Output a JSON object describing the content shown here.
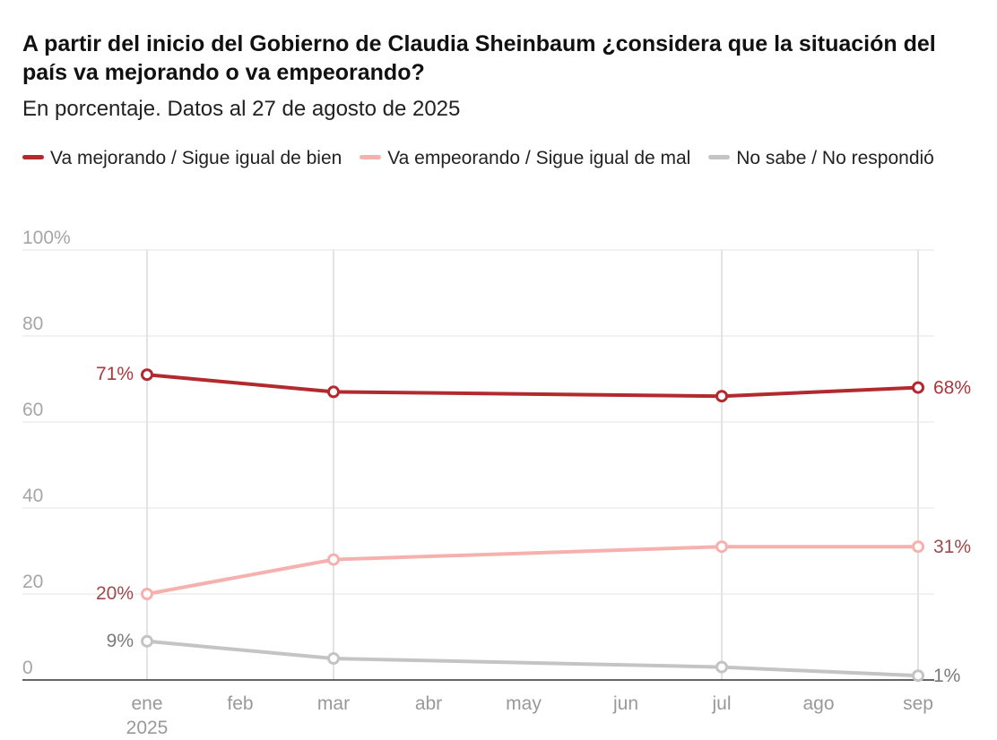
{
  "title": "A partir del inicio del Gobierno de Claudia Sheinbaum ¿considera que la situación del país va mejorando o va empeorando?",
  "subtitle": "En porcentaje. Datos al 27 de agosto de 2025",
  "chart_data": {
    "type": "line",
    "x_ticks": [
      "ene",
      "feb",
      "mar",
      "abr",
      "may",
      "jun",
      "jul",
      "ago",
      "sep"
    ],
    "x_tick_sub": "2025",
    "y_ticks": [
      "100%",
      "80",
      "60",
      "40",
      "20",
      "0"
    ],
    "ylim": [
      0,
      100
    ],
    "series": [
      {
        "name": "Va mejorando / Sigue igual de bien",
        "color": "#b2292e",
        "label_color": "#a8393c",
        "points": [
          {
            "x": "2025-01",
            "y": 71
          },
          {
            "x": "2025-03",
            "y": 67
          },
          {
            "x": "2025-07",
            "y": 66
          },
          {
            "x": "2025-09",
            "y": 68
          }
        ],
        "first_label": "71%",
        "last_label": "68%"
      },
      {
        "name": "Va empeorando / Sigue igual de mal",
        "color": "#f6b1ae",
        "label_color": "#9e4a4c",
        "points": [
          {
            "x": "2025-01",
            "y": 20
          },
          {
            "x": "2025-03",
            "y": 28
          },
          {
            "x": "2025-07",
            "y": 31
          },
          {
            "x": "2025-09",
            "y": 31
          }
        ],
        "first_label": "20%",
        "last_label": "31%"
      },
      {
        "name": "No sabe / No respondió",
        "color": "#c4c4c4",
        "label_color": "#7a7a7a",
        "points": [
          {
            "x": "2025-01",
            "y": 9
          },
          {
            "x": "2025-03",
            "y": 5
          },
          {
            "x": "2025-07",
            "y": 3
          },
          {
            "x": "2025-09",
            "y": 1
          }
        ],
        "first_label": "9%",
        "last_label": "1%"
      }
    ],
    "grid": true,
    "legend": "top"
  }
}
